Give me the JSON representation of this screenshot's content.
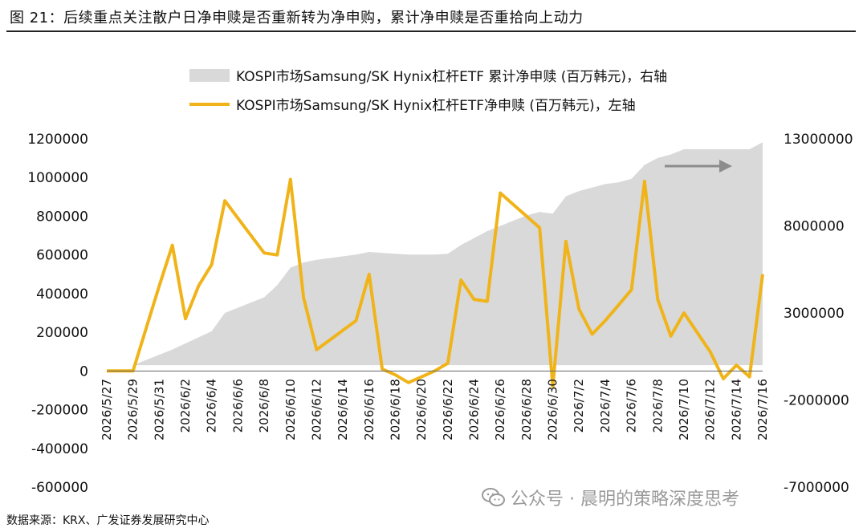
{
  "header": {
    "title": "图 21：后续重点关注散户日净申赎是否重新转为净申购，累计净申赎是否重拾向上动力"
  },
  "footer": {
    "source": "数据来源：KRX、广发证券发展研究中心"
  },
  "watermark": {
    "text": "公众号 · 晨明的策略深度思考",
    "icon": "wechat-icon"
  },
  "colors": {
    "line": "#F0B41A",
    "area": "#D9D9D9",
    "arrow": "#8C8C8C"
  },
  "chart_data": {
    "type": "line",
    "title": "",
    "x_tick_labels": [
      "2026/5/27",
      "2026/5/29",
      "2026/5/31",
      "2026/6/2",
      "2026/6/4",
      "2026/6/6",
      "2026/6/8",
      "2026/6/10",
      "2026/6/12",
      "2026/6/14",
      "2026/6/16",
      "2026/6/18",
      "2026/6/20",
      "2026/6/22",
      "2026/6/24",
      "2026/6/26",
      "2026/6/28",
      "2026/6/30",
      "2026/7/2",
      "2026/7/4",
      "2026/7/6",
      "2026/7/8",
      "2026/7/10",
      "2026/7/12",
      "2026/7/14",
      "2026/7/16"
    ],
    "y_left_ticks": [
      "1200000",
      "1000000",
      "800000",
      "600000",
      "400000",
      "200000",
      "0",
      "-200000",
      "-400000",
      "-600000"
    ],
    "y_left_range": [
      -600000,
      1200000
    ],
    "y_right_ticks": [
      "13000000",
      "8000000",
      "3000000",
      "-2000000",
      "-7000000"
    ],
    "y_right_range": [
      -7000000,
      13000000
    ],
    "legend_position": "top",
    "series": [
      {
        "name": "KOSPI市场Samsung/SK Hynix杠杆ETF 累计净申赎 (百万韩元)，右轴",
        "type": "area",
        "axis": "right",
        "x": [
          "2026/5/27",
          "2026/5/28",
          "2026/5/29",
          "2026/5/30",
          "2026/5/31",
          "2026/6/1",
          "2026/6/2",
          "2026/6/3",
          "2026/6/4",
          "2026/6/5",
          "2026/6/6",
          "2026/6/7",
          "2026/6/8",
          "2026/6/9",
          "2026/6/10",
          "2026/6/11",
          "2026/6/12",
          "2026/6/13",
          "2026/6/14",
          "2026/6/15",
          "2026/6/16",
          "2026/6/17",
          "2026/6/18",
          "2026/6/19",
          "2026/6/20",
          "2026/6/21",
          "2026/6/22",
          "2026/6/23",
          "2026/6/24",
          "2026/6/25",
          "2026/6/26",
          "2026/6/27",
          "2026/6/28",
          "2026/6/29",
          "2026/6/30",
          "2026/7/1",
          "2026/7/2",
          "2026/7/3",
          "2026/7/4",
          "2026/7/5",
          "2026/7/6",
          "2026/7/7",
          "2026/7/8",
          "2026/7/9",
          "2026/7/10",
          "2026/7/11",
          "2026/7/12",
          "2026/7/13",
          "2026/7/14",
          "2026/7/15",
          "2026/7/16"
        ],
        "values": [
          0,
          0,
          0,
          300000,
          600000,
          900000,
          1250000,
          1600000,
          1950000,
          3000000,
          3300000,
          3600000,
          3900000,
          4600000,
          5600000,
          5900000,
          6050000,
          6150000,
          6250000,
          6350000,
          6500000,
          6450000,
          6400000,
          6350000,
          6350000,
          6350000,
          6400000,
          6900000,
          7300000,
          7700000,
          8000000,
          8300000,
          8600000,
          8800000,
          8700000,
          9700000,
          10000000,
          10200000,
          10400000,
          10500000,
          10700000,
          11500000,
          11900000,
          12100000,
          12400000,
          12400000,
          12400000,
          12400000,
          12400000,
          12400000,
          12800000
        ]
      },
      {
        "name": "KOSPI市场Samsung/SK Hynix杠杆ETF净申赎 (百万韩元)，左轴",
        "type": "line",
        "axis": "left",
        "x": [
          "2026/5/27",
          "2026/5/28",
          "2026/5/29",
          "2026/5/30",
          "2026/5/31",
          "2026/6/1",
          "2026/6/2",
          "2026/6/3",
          "2026/6/4",
          "2026/6/5",
          "2026/6/6",
          "2026/6/7",
          "2026/6/8",
          "2026/6/9",
          "2026/6/10",
          "2026/6/11",
          "2026/6/12",
          "2026/6/13",
          "2026/6/14",
          "2026/6/15",
          "2026/6/16",
          "2026/6/17",
          "2026/6/18",
          "2026/6/19",
          "2026/6/20",
          "2026/6/21",
          "2026/6/22",
          "2026/6/23",
          "2026/6/24",
          "2026/6/25",
          "2026/6/26",
          "2026/6/27",
          "2026/6/28",
          "2026/6/29",
          "2026/6/30",
          "2026/7/1",
          "2026/7/2",
          "2026/7/3",
          "2026/7/4",
          "2026/7/5",
          "2026/7/6",
          "2026/7/7",
          "2026/7/8",
          "2026/7/9",
          "2026/7/10",
          "2026/7/11",
          "2026/7/12",
          "2026/7/13",
          "2026/7/14",
          "2026/7/15",
          "2026/7/16"
        ],
        "values": [
          0,
          0,
          0,
          220000,
          440000,
          650000,
          270000,
          440000,
          550000,
          880000,
          790000,
          700000,
          610000,
          600000,
          990000,
          380000,
          110000,
          160000,
          210000,
          260000,
          500000,
          10000,
          -20000,
          -60000,
          -30000,
          0,
          40000,
          470000,
          370000,
          360000,
          920000,
          860000,
          800000,
          740000,
          -80000,
          670000,
          320000,
          190000,
          260000,
          340000,
          420000,
          980000,
          370000,
          180000,
          300000,
          200000,
          100000,
          -40000,
          30000,
          -30000,
          500000
        ]
      }
    ],
    "annotations": [
      {
        "type": "arrow",
        "direction": "right",
        "meaning": "cumulative axis is the right axis"
      }
    ]
  }
}
